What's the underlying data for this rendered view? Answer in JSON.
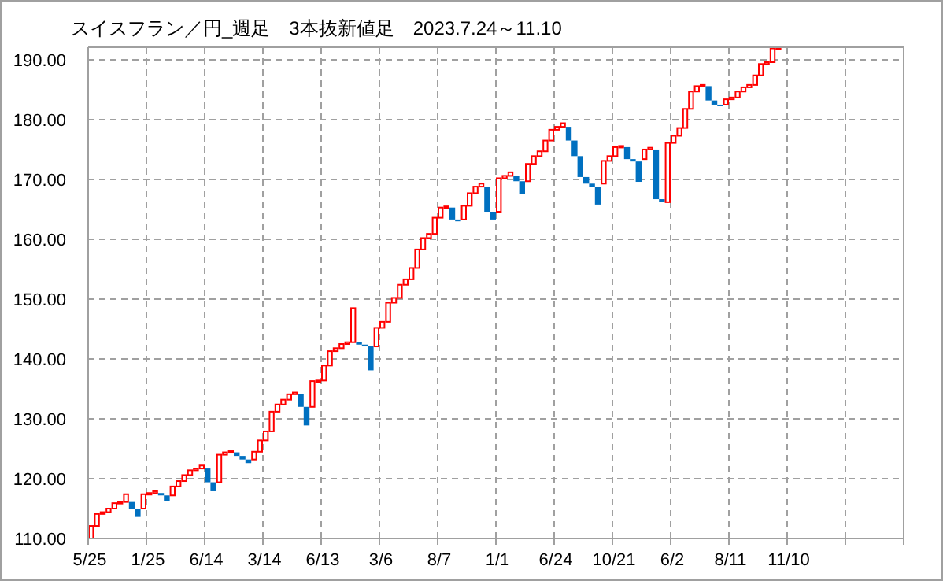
{
  "chart_data": {
    "type": "bar",
    "title": "スイスフラン／円_週足　3本抜新値足　2023.7.24～11.10",
    "categories": [
      "5/25",
      null,
      null,
      null,
      null,
      null,
      null,
      null,
      null,
      null,
      "1/25",
      null,
      null,
      null,
      null,
      null,
      null,
      null,
      null,
      null,
      "6/14",
      null,
      null,
      null,
      null,
      null,
      null,
      null,
      null,
      null,
      "3/14",
      null,
      null,
      null,
      null,
      null,
      null,
      null,
      null,
      null,
      "6/13",
      null,
      null,
      null,
      null,
      null,
      null,
      null,
      null,
      null,
      "3/6",
      null,
      null,
      null,
      null,
      null,
      null,
      null,
      null,
      null,
      "8/7",
      null,
      null,
      null,
      null,
      null,
      null,
      null,
      null,
      null,
      "1/1",
      null,
      null,
      null,
      null,
      null,
      null,
      null,
      null,
      null,
      "6/24",
      null,
      null,
      null,
      null,
      null,
      null,
      null,
      null,
      null,
      "10/21",
      null,
      null,
      null,
      null,
      null,
      null,
      null,
      null,
      null,
      "6/2",
      null,
      null,
      null,
      null,
      null,
      null,
      null,
      null,
      null,
      "8/11",
      null,
      null,
      null,
      null,
      null,
      null,
      null,
      null,
      null,
      "11/10",
      null,
      null,
      null,
      null,
      null,
      null,
      null,
      null,
      null,
      null,
      null,
      null,
      null,
      null,
      null,
      null,
      null,
      null,
      null
    ],
    "base": [
      110.0,
      112.1,
      114.1,
      114.4,
      115.0,
      115.9,
      116.1,
      116.1,
      115.0,
      115.0,
      117.4,
      117.6,
      117.6,
      117.2,
      117.2,
      118.7,
      119.6,
      120.6,
      121.4,
      121.7,
      121.7,
      119.4,
      119.4,
      124.0,
      124.4,
      124.4,
      123.8,
      123.2,
      123.2,
      124.5,
      126.4,
      127.9,
      131.2,
      132.4,
      133.2,
      134.1,
      134.1,
      132.0,
      132.0,
      136.3,
      136.4,
      138.9,
      141.3,
      141.8,
      142.5,
      142.8,
      142.8,
      142.4,
      142.1,
      142.1,
      145.2,
      146.2,
      149.4,
      150.2,
      152.4,
      153.3,
      155.2,
      158.3,
      160.2,
      160.9,
      163.6,
      165.3,
      165.3,
      163.3,
      163.3,
      165.6,
      167.7,
      168.8,
      168.8,
      164.6,
      164.6,
      170.2,
      170.6,
      170.6,
      169.7,
      169.7,
      172.6,
      173.9,
      174.7,
      176.5,
      178.3,
      178.8,
      178.8,
      176.5,
      173.9,
      170.4,
      169.3,
      168.7,
      169.3,
      173.1,
      173.9,
      175.4,
      175.4,
      173.4,
      173.0,
      173.4,
      175.0,
      175.0,
      166.7,
      166.2,
      176.1,
      177.3,
      178.6,
      181.8,
      184.7,
      185.6,
      185.6,
      183.2,
      182.5,
      182.5,
      183.4,
      183.7,
      184.7,
      185.4,
      185.8,
      187.4,
      189.3,
      189.6,
      191.9,
      null,
      null,
      null,
      null,
      null,
      null,
      null,
      null,
      null,
      null,
      null,
      null,
      null,
      null,
      null,
      null,
      null,
      null,
      null,
      null,
      null
    ],
    "values": [
      2.1,
      2.0,
      0.3,
      0.6,
      0.9,
      0.2,
      1.3,
      -1.1,
      -1.4,
      2.4,
      0.2,
      0.3,
      -0.4,
      -1.0,
      1.5,
      0.9,
      1.0,
      0.8,
      0.3,
      0.5,
      -2.3,
      -1.5,
      4.6,
      0.4,
      0.2,
      -0.6,
      -0.6,
      -0.6,
      1.3,
      1.9,
      1.5,
      3.3,
      1.2,
      0.8,
      0.9,
      0.3,
      -2.1,
      -3.1,
      4.3,
      0.1,
      2.5,
      2.4,
      0.5,
      0.7,
      0.3,
      5.7,
      -0.4,
      -0.3,
      -4.0,
      3.1,
      1.0,
      3.2,
      0.8,
      2.2,
      0.9,
      1.9,
      3.1,
      1.9,
      0.7,
      2.7,
      1.7,
      0.2,
      -2.0,
      -0.3,
      2.3,
      2.1,
      1.1,
      0.5,
      -4.2,
      -1.3,
      5.6,
      0.4,
      0.6,
      -0.9,
      -2.2,
      2.9,
      1.3,
      0.8,
      1.8,
      1.8,
      0.5,
      0.6,
      -2.3,
      -2.6,
      -3.5,
      -1.1,
      -0.6,
      -2.9,
      3.8,
      0.8,
      1.5,
      0.2,
      -2.0,
      -0.4,
      -3.4,
      1.6,
      0.3,
      -8.3,
      -0.5,
      9.9,
      1.2,
      1.3,
      3.2,
      2.9,
      0.9,
      0.2,
      -2.4,
      -0.7,
      -0.2,
      0.9,
      0.3,
      1.0,
      0.7,
      0.4,
      1.6,
      1.9,
      0.3,
      2.3,
      0.1,
      null,
      null,
      null,
      null,
      null,
      null,
      null,
      null,
      null,
      null,
      null,
      null,
      null,
      null,
      null,
      null,
      null,
      null,
      null,
      null,
      null
    ],
    "colors": [
      "#ff0000",
      "#ff0000",
      "#ff0000",
      "#ff0000",
      "#ff0000",
      "#ff0000",
      "#ff0000",
      "#0070c0",
      "#0070c0",
      "#ff0000",
      "#ff0000",
      "#ff0000",
      "#0070c0",
      "#0070c0",
      "#ff0000",
      "#ff0000",
      "#ff0000",
      "#ff0000",
      "#ff0000",
      "#ff0000",
      "#0070c0",
      "#0070c0",
      "#ff0000",
      "#ff0000",
      "#ff0000",
      "#0070c0",
      "#0070c0",
      "#0070c0",
      "#ff0000",
      "#ff0000",
      "#ff0000",
      "#ff0000",
      "#ff0000",
      "#ff0000",
      "#ff0000",
      "#ff0000",
      "#0070c0",
      "#0070c0",
      "#ff0000",
      "#ff0000",
      "#ff0000",
      "#ff0000",
      "#ff0000",
      "#ff0000",
      "#ff0000",
      "#ff0000",
      "#0070c0",
      "#0070c0",
      "#0070c0",
      "#ff0000",
      "#ff0000",
      "#ff0000",
      "#ff0000",
      "#ff0000",
      "#ff0000",
      "#ff0000",
      "#ff0000",
      "#ff0000",
      "#ff0000",
      "#ff0000",
      "#ff0000",
      "#ff0000",
      "#0070c0",
      "#0070c0",
      "#ff0000",
      "#ff0000",
      "#ff0000",
      "#ff0000",
      "#0070c0",
      "#0070c0",
      "#ff0000",
      "#ff0000",
      "#ff0000",
      "#0070c0",
      "#0070c0",
      "#ff0000",
      "#ff0000",
      "#ff0000",
      "#ff0000",
      "#ff0000",
      "#ff0000",
      "#ff0000",
      "#0070c0",
      "#0070c0",
      "#0070c0",
      "#0070c0",
      "#0070c0",
      "#0070c0",
      "#ff0000",
      "#ff0000",
      "#ff0000",
      "#ff0000",
      "#0070c0",
      "#0070c0",
      "#0070c0",
      "#ff0000",
      "#ff0000",
      "#0070c0",
      "#0070c0",
      "#ff0000",
      "#ff0000",
      "#ff0000",
      "#ff0000",
      "#ff0000",
      "#ff0000",
      "#ff0000",
      "#0070c0",
      "#0070c0",
      "#0070c0",
      "#ff0000",
      "#ff0000",
      "#ff0000",
      "#ff0000",
      "#ff0000",
      "#ff0000",
      "#ff0000",
      "#ff0000",
      "#ff0000",
      "#ff0000",
      null,
      null,
      null,
      null,
      null,
      null,
      null,
      null,
      null,
      null,
      null,
      null,
      null,
      null,
      null,
      null,
      null,
      null,
      null,
      null,
      null
    ],
    "ylim": [
      110,
      192.1
    ],
    "yticks": [
      {
        "value": 110,
        "label": "110.00"
      },
      {
        "value": 120,
        "label": "120.00"
      },
      {
        "value": 130,
        "label": "130.00"
      },
      {
        "value": 140,
        "label": "140.00"
      },
      {
        "value": 150,
        "label": "150.00"
      },
      {
        "value": 160,
        "label": "160.00"
      },
      {
        "value": 170,
        "label": "170.00"
      },
      {
        "value": 180,
        "label": "180.00"
      },
      {
        "value": 190,
        "label": "190.00"
      }
    ],
    "grid": true
  }
}
